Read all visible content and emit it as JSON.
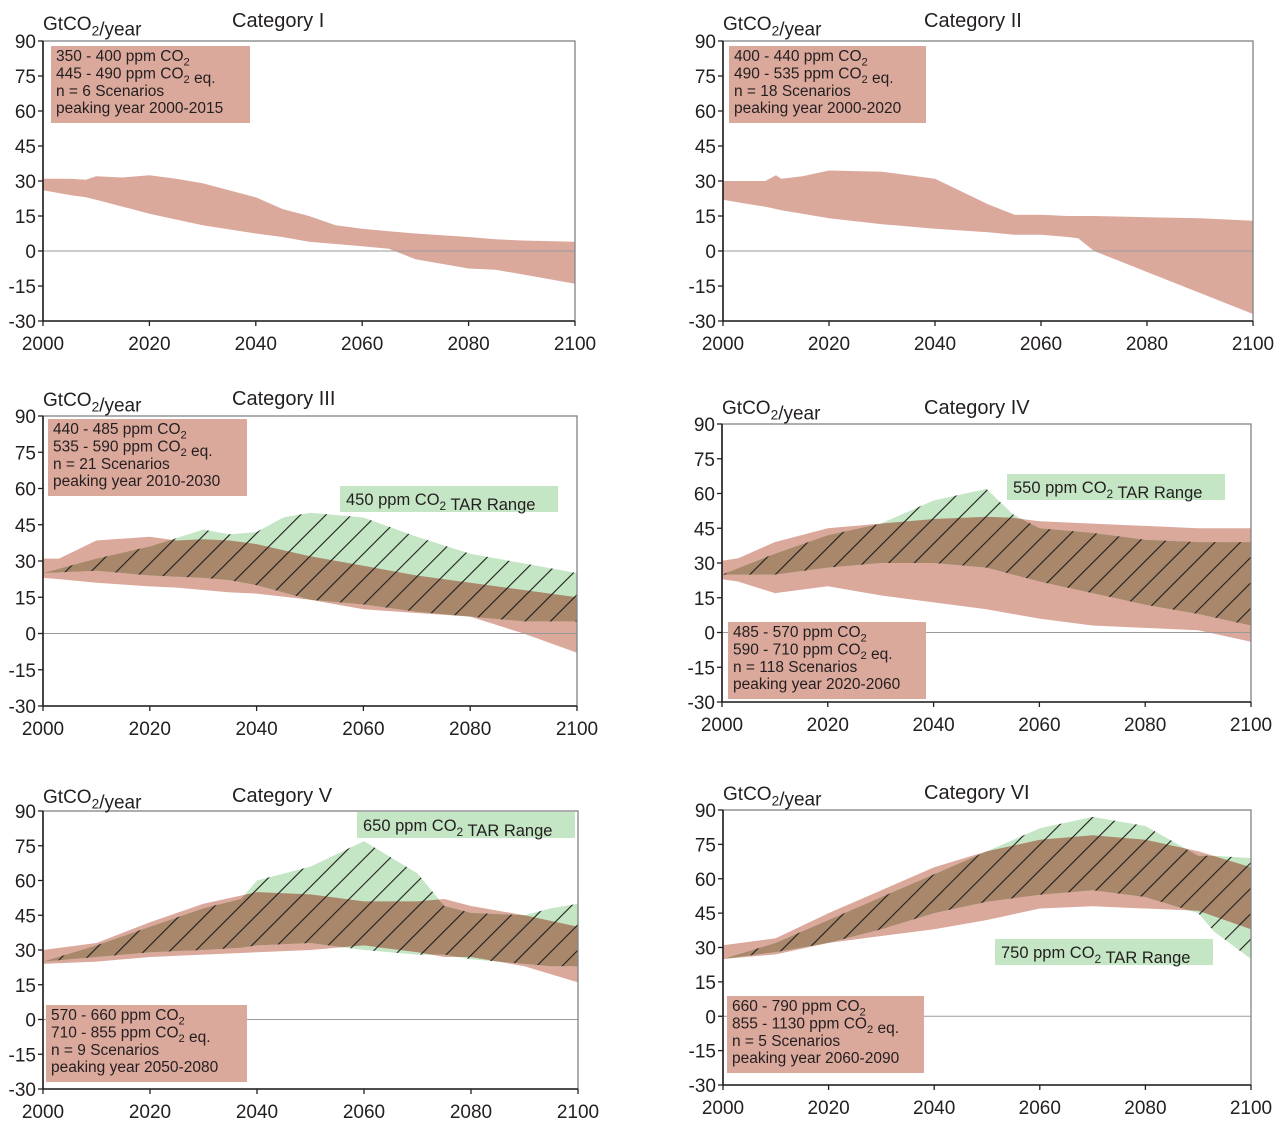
{
  "figure": {
    "colors": {
      "scenario_fill": "#dba89c",
      "tar_fill": "#c5e6c4",
      "overlap_fill": "#a8876b",
      "hatch": "#1e1e1e",
      "axis": "#808285",
      "text": "#231f20"
    }
  },
  "chart_data": [
    {
      "type": "area",
      "title": "Category I",
      "ylabel": "GtCO2/year",
      "ylim": [
        -30,
        90
      ],
      "xlim": [
        2000,
        2100
      ],
      "x_ticks": [
        "2000",
        "2020",
        "2040",
        "2060",
        "2080",
        "2100"
      ],
      "y_ticks": [
        "90",
        "75",
        "60",
        "45",
        "30",
        "15",
        "0",
        "-15",
        "-30"
      ],
      "info": [
        "350 - 400 ppm CO2",
        "445 - 490 ppm CO2 eq.",
        "n = 6 Scenarios",
        "peaking year 2000-2015"
      ],
      "info_position": "top-left",
      "scenario_range": {
        "x": [
          2000,
          2005,
          2008,
          2010,
          2015,
          2020,
          2025,
          2030,
          2040,
          2045,
          2050,
          2055,
          2060,
          2065,
          2070,
          2080,
          2085,
          2090,
          2100
        ],
        "upper": [
          31,
          31,
          30.5,
          32,
          31.5,
          32.5,
          31,
          29,
          23,
          18,
          15,
          11,
          9.5,
          8.5,
          7.5,
          6,
          5,
          4.5,
          4
        ],
        "lower": [
          26,
          24,
          23,
          22,
          19,
          16,
          13.5,
          11,
          7.5,
          6,
          4,
          3,
          2,
          1,
          -3.5,
          -7.5,
          -8,
          -10,
          -14
        ]
      }
    },
    {
      "type": "area",
      "title": "Category II",
      "ylabel": "GtCO2/year",
      "ylim": [
        -30,
        90
      ],
      "xlim": [
        2000,
        2100
      ],
      "x_ticks": [
        "2000",
        "2020",
        "2040",
        "2060",
        "2080",
        "2100"
      ],
      "y_ticks": [
        "90",
        "75",
        "60",
        "45",
        "30",
        "15",
        "0",
        "-15",
        "-30"
      ],
      "info": [
        "400 - 440 ppm CO2",
        "490 - 535 ppm CO2 eq.",
        "n = 18 Scenarios",
        "peaking year 2000-2020"
      ],
      "info_position": "top-left",
      "scenario_range": {
        "x": [
          2000,
          2005,
          2008,
          2010,
          2011,
          2015,
          2020,
          2030,
          2040,
          2050,
          2055,
          2060,
          2065,
          2067,
          2070,
          2080,
          2090,
          2100
        ],
        "upper": [
          30,
          30,
          30,
          32.5,
          31,
          32,
          34.5,
          34,
          31,
          20,
          15.5,
          15.5,
          15,
          15,
          15,
          14.5,
          14,
          13
        ],
        "lower": [
          22,
          20,
          19,
          18,
          17.5,
          16,
          14,
          11.5,
          9.5,
          8,
          7,
          7,
          6,
          5.5,
          0,
          -9,
          -18,
          -27
        ]
      }
    },
    {
      "type": "area",
      "title": "Category III",
      "ylabel": "GtCO2/year",
      "ylim": [
        -30,
        90
      ],
      "xlim": [
        2000,
        2100
      ],
      "x_ticks": [
        "2000",
        "2020",
        "2040",
        "2060",
        "2080",
        "2100"
      ],
      "y_ticks": [
        "90",
        "75",
        "60",
        "45",
        "30",
        "15",
        "0",
        "-15",
        "-30"
      ],
      "info": [
        "440 - 485 ppm CO2",
        "535 - 590 ppm CO2 eq.",
        "n = 21 Scenarios",
        "peaking year 2010-2030"
      ],
      "info_position": "top-left",
      "tar_label": "450 ppm CO2 TAR Range",
      "scenario_range": {
        "x": [
          2000,
          2003,
          2010,
          2020,
          2025,
          2030,
          2035,
          2040,
          2050,
          2060,
          2070,
          2080,
          2090,
          2100
        ],
        "upper": [
          31,
          31,
          38.5,
          40,
          38.5,
          39,
          38.5,
          37,
          32,
          28,
          24,
          21,
          18,
          15
        ],
        "lower": [
          23,
          22.5,
          21,
          19.5,
          19,
          18,
          17,
          16.5,
          14,
          10,
          8.5,
          7,
          0,
          -8
        ]
      },
      "tar_range": {
        "x": [
          2000,
          2010,
          2020,
          2030,
          2035,
          2040,
          2045,
          2050,
          2060,
          2070,
          2080,
          2090,
          2100
        ],
        "upper": [
          25,
          31,
          36,
          43,
          41,
          42,
          48,
          50,
          48,
          40,
          33,
          29,
          25
        ],
        "lower": [
          25,
          26,
          24,
          23,
          22,
          20,
          17,
          14,
          12,
          9,
          7,
          5,
          5
        ]
      }
    },
    {
      "type": "area",
      "title": "Category IV",
      "ylabel": "GtCO2/year",
      "ylim": [
        -30,
        90
      ],
      "xlim": [
        2000,
        2100
      ],
      "x_ticks": [
        "2000",
        "2020",
        "2040",
        "2060",
        "2080",
        "2100"
      ],
      "y_ticks": [
        "90",
        "75",
        "60",
        "45",
        "30",
        "15",
        "0",
        "-15",
        "-30"
      ],
      "info": [
        "485 - 570 ppm CO2",
        "590 - 710 ppm CO2 eq.",
        "n = 118 Scenarios",
        "peaking year 2020-2060"
      ],
      "info_position": "bottom-left",
      "tar_label": "550 ppm CO2 TAR Range",
      "scenario_range": {
        "x": [
          2000,
          2003,
          2010,
          2020,
          2030,
          2040,
          2050,
          2055,
          2060,
          2070,
          2080,
          2090,
          2100
        ],
        "upper": [
          31,
          32,
          39,
          45,
          47,
          49,
          50,
          49.5,
          48,
          47,
          46,
          45,
          45
        ],
        "lower": [
          23,
          22,
          17,
          20,
          16,
          13,
          10,
          8,
          6,
          3,
          2,
          1,
          -4
        ]
      },
      "tar_range": {
        "x": [
          2000,
          2010,
          2020,
          2030,
          2040,
          2050,
          2055,
          2060,
          2070,
          2080,
          2090,
          2100
        ],
        "upper": [
          25,
          34,
          42,
          47,
          57,
          62,
          51,
          45,
          43,
          40,
          39,
          39
        ],
        "lower": [
          25,
          25,
          28,
          30,
          30,
          28,
          25,
          22,
          17,
          12,
          8,
          3
        ]
      }
    },
    {
      "type": "area",
      "title": "Category V",
      "ylabel": "GtCO2/year",
      "ylim": [
        -30,
        90
      ],
      "xlim": [
        2000,
        2100
      ],
      "x_ticks": [
        "2000",
        "2020",
        "2040",
        "2060",
        "2080",
        "2100"
      ],
      "y_ticks": [
        "90",
        "75",
        "60",
        "45",
        "30",
        "15",
        "0",
        "-15",
        "-30"
      ],
      "info": [
        "570 - 660 ppm CO2",
        "710 - 855 ppm CO2 eq.",
        "n = 9 Scenarios",
        "peaking year 2050-2080"
      ],
      "info_position": "bottom-left",
      "tar_label": "650 ppm CO2 TAR Range",
      "scenario_range": {
        "x": [
          2000,
          2010,
          2020,
          2030,
          2040,
          2050,
          2060,
          2070,
          2075,
          2080,
          2090,
          2100
        ],
        "upper": [
          30,
          33,
          42,
          50,
          55,
          54,
          51,
          51,
          52,
          49,
          45,
          40
        ],
        "lower": [
          24,
          25,
          27,
          28,
          29,
          30,
          32,
          29,
          27,
          27,
          23,
          16
        ]
      },
      "tar_range": {
        "x": [
          2000,
          2010,
          2020,
          2030,
          2037,
          2040,
          2050,
          2060,
          2070,
          2075,
          2080,
          2090,
          2095,
          2100
        ],
        "upper": [
          25,
          32,
          40,
          48,
          52,
          60,
          66,
          77,
          63,
          49,
          46,
          45,
          48,
          50
        ],
        "lower": [
          25,
          27,
          29,
          30,
          31,
          32,
          33,
          30,
          28,
          28,
          26,
          24,
          23,
          23
        ]
      }
    },
    {
      "type": "area",
      "title": "Category VI",
      "ylabel": "GtCO2/year",
      "ylim": [
        -30,
        90
      ],
      "xlim": [
        2000,
        2100
      ],
      "x_ticks": [
        "2000",
        "2020",
        "2040",
        "2060",
        "2080",
        "2100"
      ],
      "y_ticks": [
        "90",
        "75",
        "60",
        "45",
        "30",
        "15",
        "0",
        "-15",
        "-30"
      ],
      "info": [
        "660 - 790 ppm CO2",
        "855 - 1130 ppm CO2 eq.",
        "n = 5 Scenarios",
        "peaking year 2060-2090"
      ],
      "info_position": "bottom-left",
      "tar_label": "750 ppm CO2 TAR Range",
      "scenario_range": {
        "x": [
          2000,
          2010,
          2020,
          2030,
          2040,
          2050,
          2060,
          2070,
          2080,
          2090,
          2100
        ],
        "upper": [
          31,
          34,
          45,
          55,
          65,
          72,
          77,
          79,
          77,
          72,
          65
        ],
        "lower": [
          25,
          27,
          32,
          35,
          38,
          42,
          47,
          48,
          47,
          46,
          38
        ]
      },
      "tar_range": {
        "x": [
          2000,
          2010,
          2020,
          2030,
          2040,
          2050,
          2060,
          2070,
          2080,
          2090,
          2093,
          2100
        ],
        "upper": [
          25,
          32,
          42,
          52,
          62,
          72,
          82,
          87,
          83,
          70,
          70,
          69
        ],
        "lower": [
          25,
          28,
          32,
          38,
          45,
          50,
          53,
          55,
          52,
          45,
          37,
          25
        ]
      }
    }
  ]
}
